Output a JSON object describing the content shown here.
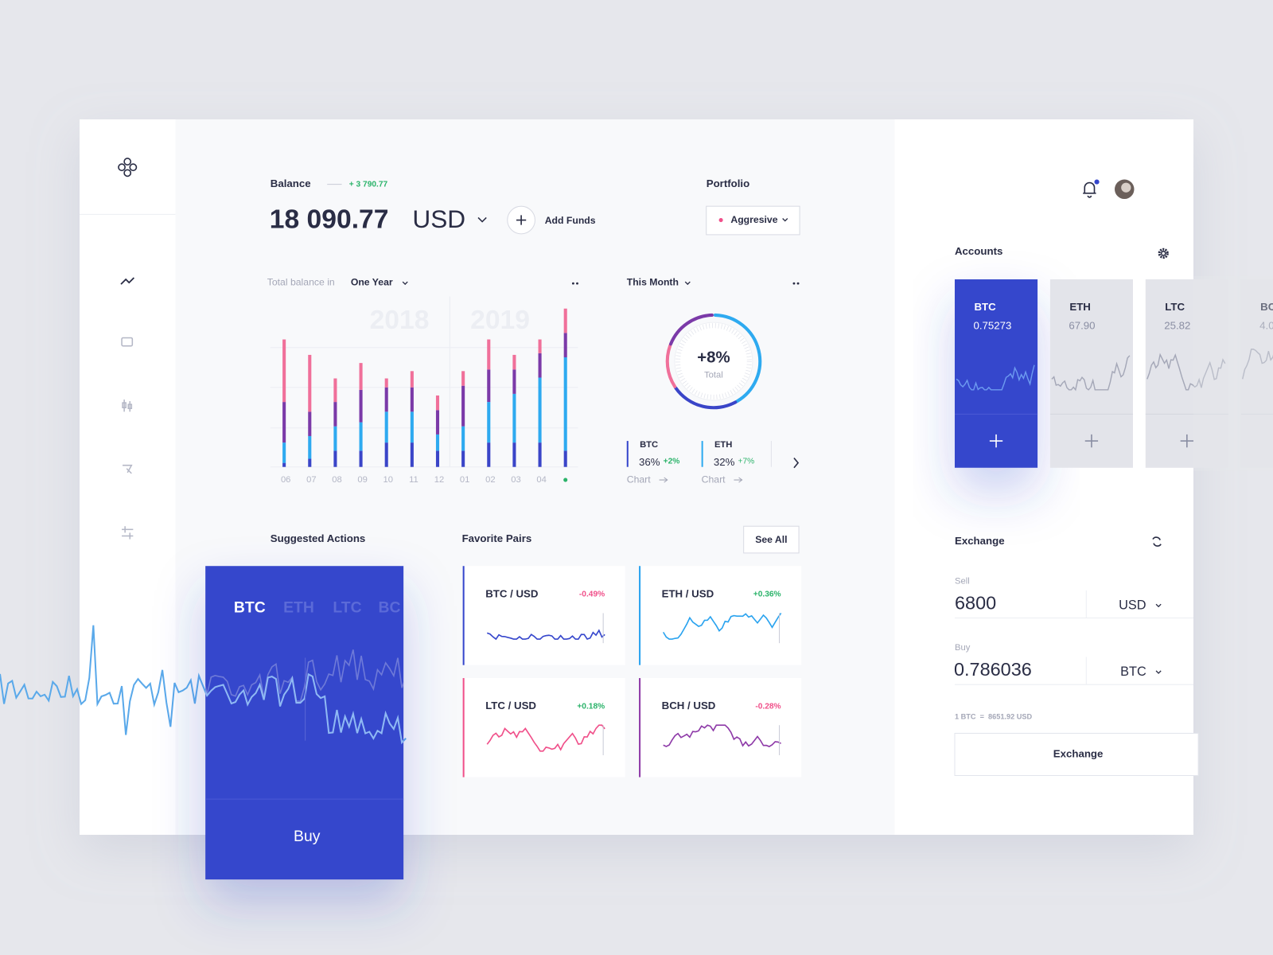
{
  "balance": {
    "label": "Balance",
    "change": "+ 3 790.77",
    "amount": "18 090.77",
    "currency": "USD",
    "add_funds": "Add Funds"
  },
  "portfolio": {
    "label": "Portfolio",
    "option": "Aggresive"
  },
  "balance_chart": {
    "type": "bar",
    "stacked": true,
    "caption": "Total balance in",
    "period": "One Year",
    "years": [
      "2018",
      "2019"
    ],
    "categories": [
      "06",
      "07",
      "08",
      "09",
      "10",
      "11",
      "12",
      "01",
      "02",
      "03",
      "04",
      null
    ],
    "series": [
      {
        "color": "#3a45c8",
        "values": [
          5,
          10,
          20,
          20,
          30,
          30,
          20,
          20,
          30,
          30,
          30,
          20
        ]
      },
      {
        "color": "#2eaaf0",
        "values": [
          25,
          28,
          30,
          35,
          38,
          38,
          20,
          30,
          50,
          60,
          80,
          115
        ]
      },
      {
        "color": "#7b3aa8",
        "values": [
          50,
          30,
          30,
          40,
          30,
          30,
          30,
          50,
          40,
          30,
          30,
          30
        ]
      },
      {
        "color": "#f0709a",
        "values": [
          77,
          70,
          29,
          33,
          11,
          20,
          18,
          18,
          37,
          18,
          17,
          30
        ]
      }
    ],
    "ylim": [
      0,
      200
    ]
  },
  "month_panel": {
    "period": "This Month",
    "total_change": "+8%",
    "total_label": "Total",
    "coins": [
      {
        "name": "BTC",
        "share": "36%",
        "change": "+2%",
        "link": "Chart"
      },
      {
        "name": "ETH",
        "share": "32%",
        "change": "+7%",
        "link": "Chart"
      }
    ]
  },
  "suggested": {
    "title": "Suggested Actions",
    "tabs": [
      "BTC",
      "ETH",
      "LTC",
      "BC"
    ],
    "button": "Buy"
  },
  "favorites": {
    "title": "Favorite Pairs",
    "see_all": "See All",
    "pairs": [
      {
        "name": "BTC / USD",
        "change": "-0.49%"
      },
      {
        "name": "ETH / USD",
        "change": "+0.36%"
      },
      {
        "name": "LTC / USD",
        "change": "+0.18%"
      },
      {
        "name": "BCH / USD",
        "change": "-0.28%"
      }
    ]
  },
  "accounts": {
    "title": "Accounts",
    "cards": [
      {
        "name": "BTC",
        "amount": "0.75273"
      },
      {
        "name": "ETH",
        "amount": "67.90"
      },
      {
        "name": "LTC",
        "amount": "25.82"
      },
      {
        "name": "BC",
        "amount": "4.0"
      }
    ]
  },
  "exchange": {
    "title": "Exchange",
    "sell_label": "Sell",
    "sell_amount": "6800",
    "sell_currency": "USD",
    "buy_label": "Buy",
    "buy_amount": "0.786036",
    "buy_currency": "BTC",
    "rate": "1 BTC  =  8651.92 USD",
    "button": "Exchange"
  }
}
